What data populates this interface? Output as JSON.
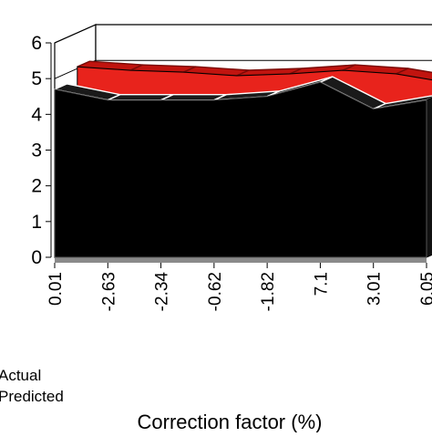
{
  "chart_data": {
    "type": "area",
    "style": "3d-area",
    "categories": [
      "0.01",
      "-2.63",
      "-2.34",
      "-0.62",
      "-1.82",
      "7.1",
      "3.01",
      "6.05"
    ],
    "xlabel": "Correction factor (%)",
    "ylabel": "",
    "ylim": [
      0,
      6
    ],
    "yticks": [
      "0",
      "1",
      "2",
      "3",
      "4",
      "5",
      "6"
    ],
    "grid": true,
    "legend_position": "bottom-left",
    "series": [
      {
        "name": "Actual",
        "values": [
          4.7,
          4.4,
          4.4,
          4.4,
          4.5,
          4.9,
          4.15,
          4.4
        ],
        "color": "#000000"
      },
      {
        "name": "Predicted",
        "values": [
          5.05,
          4.95,
          4.9,
          4.8,
          4.85,
          4.95,
          4.85,
          4.6
        ],
        "color": "#e8231c"
      }
    ]
  }
}
